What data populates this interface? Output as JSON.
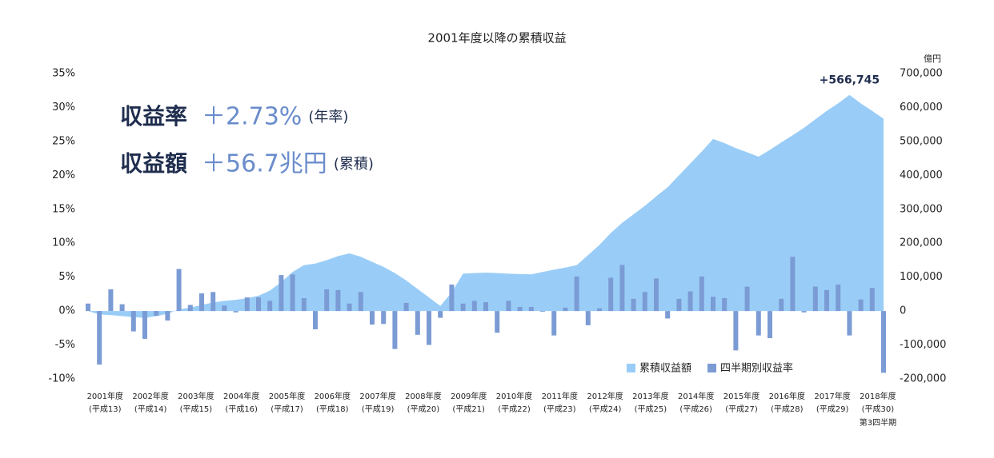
{
  "chart_data": {
    "type": "bar-area",
    "title": "2001年度以降の累積収益",
    "y2_unit": "億円",
    "headline": {
      "rate_label": "収益率",
      "rate_value": "＋2.73%",
      "rate_note": "(年率)",
      "amount_label": "収益額",
      "amount_value": "＋56.7兆円",
      "amount_note": "(累積)"
    },
    "annotation": "+566,745",
    "year_labels": [
      "2001年度",
      "2002年度",
      "2003年度",
      "2004年度",
      "2005年度",
      "2006年度",
      "2007年度",
      "2008年度",
      "2009年度",
      "2010年度",
      "2011年度",
      "2012年度",
      "2013年度",
      "2014年度",
      "2015年度",
      "2016年度",
      "2017年度",
      "2018年度"
    ],
    "era_labels": [
      "(平成13)",
      "(平成14)",
      "(平成15)",
      "(平成16)",
      "(平成17)",
      "(平成18)",
      "(平成19)",
      "(平成20)",
      "(平成21)",
      "(平成22)",
      "(平成23)",
      "(平成24)",
      "(平成25)",
      "(平成26)",
      "(平成27)",
      "(平成28)",
      "(平成29)",
      "(平成30)"
    ],
    "last_note": "第3四半期",
    "ylim": [
      -10,
      35
    ],
    "yticks": [
      {
        "value": 35,
        "label": "35%"
      },
      {
        "value": 30,
        "label": "30%"
      },
      {
        "value": 25,
        "label": "25%"
      },
      {
        "value": 20,
        "label": "20%"
      },
      {
        "value": 15,
        "label": "15%"
      },
      {
        "value": 10,
        "label": "10%"
      },
      {
        "value": 5,
        "label": "5%"
      },
      {
        "value": 0,
        "label": "0%"
      },
      {
        "value": -5,
        "label": "-5%"
      },
      {
        "value": -10,
        "label": "-10%"
      }
    ],
    "y2lim": [
      -200000,
      700000
    ],
    "y2ticks": [
      {
        "value": 700000,
        "label": "700,000"
      },
      {
        "value": 600000,
        "label": "600,000"
      },
      {
        "value": 500000,
        "label": "500,000"
      },
      {
        "value": 400000,
        "label": "400,000"
      },
      {
        "value": 300000,
        "label": "300,000"
      },
      {
        "value": 200000,
        "label": "200,000"
      },
      {
        "value": 100000,
        "label": "100,000"
      },
      0,
      {
        "value": -100000,
        "label": "-100,000"
      },
      {
        "value": -200000,
        "label": "-200,000"
      }
    ],
    "series": [
      {
        "name": "累積収益額",
        "color": "#99cdf7",
        "axis": "y2",
        "kind": "area",
        "values": [
          0,
          -10000,
          -12000,
          -15000,
          -18000,
          -20000,
          -15000,
          -8000,
          5000,
          10000,
          18000,
          25000,
          30000,
          33000,
          38000,
          45000,
          60000,
          85000,
          115000,
          135000,
          140000,
          150000,
          162000,
          170000,
          160000,
          145000,
          130000,
          112000,
          90000,
          65000,
          40000,
          15000,
          55000,
          110000,
          112000,
          113000,
          112000,
          110000,
          109000,
          108000,
          115000,
          122000,
          128000,
          135000,
          165000,
          195000,
          230000,
          260000,
          285000,
          310000,
          338000,
          365000,
          400000,
          435000,
          470000,
          507000,
          495000,
          480000,
          468000,
          455000,
          475000,
          497000,
          518000,
          540000,
          565000,
          590000,
          612000,
          637000,
          612000,
          590000,
          566745
        ]
      },
      {
        "name": "四半期別収益率",
        "color": "#7b9bd4",
        "kind": "bar",
        "values": [
          1.1,
          -7.9,
          3.2,
          1.0,
          -3.0,
          -4.1,
          -0.7,
          -1.4,
          6.2,
          0.9,
          2.6,
          2.8,
          0.8,
          -0.2,
          2.0,
          2.0,
          1.5,
          5.3,
          5.4,
          1.9,
          -2.7,
          3.2,
          3.1,
          1.1,
          2.8,
          -2.0,
          -1.9,
          -5.6,
          1.2,
          -3.5,
          -5.0,
          -1.0,
          3.9,
          1.1,
          1.5,
          1.3,
          -3.2,
          1.5,
          0.6,
          0.6,
          -0.1,
          -3.6,
          0.5,
          5.1,
          -2.1,
          0.4,
          4.9,
          6.8,
          1.8,
          2.8,
          4.8,
          -1.1,
          1.8,
          2.9,
          5.1,
          2.1,
          1.9,
          -5.8,
          3.6,
          -3.6,
          -4.0,
          1.8,
          8.0,
          -0.2,
          3.6,
          3.1,
          3.9,
          -3.6,
          1.7,
          3.4,
          -9.1
        ]
      }
    ]
  }
}
